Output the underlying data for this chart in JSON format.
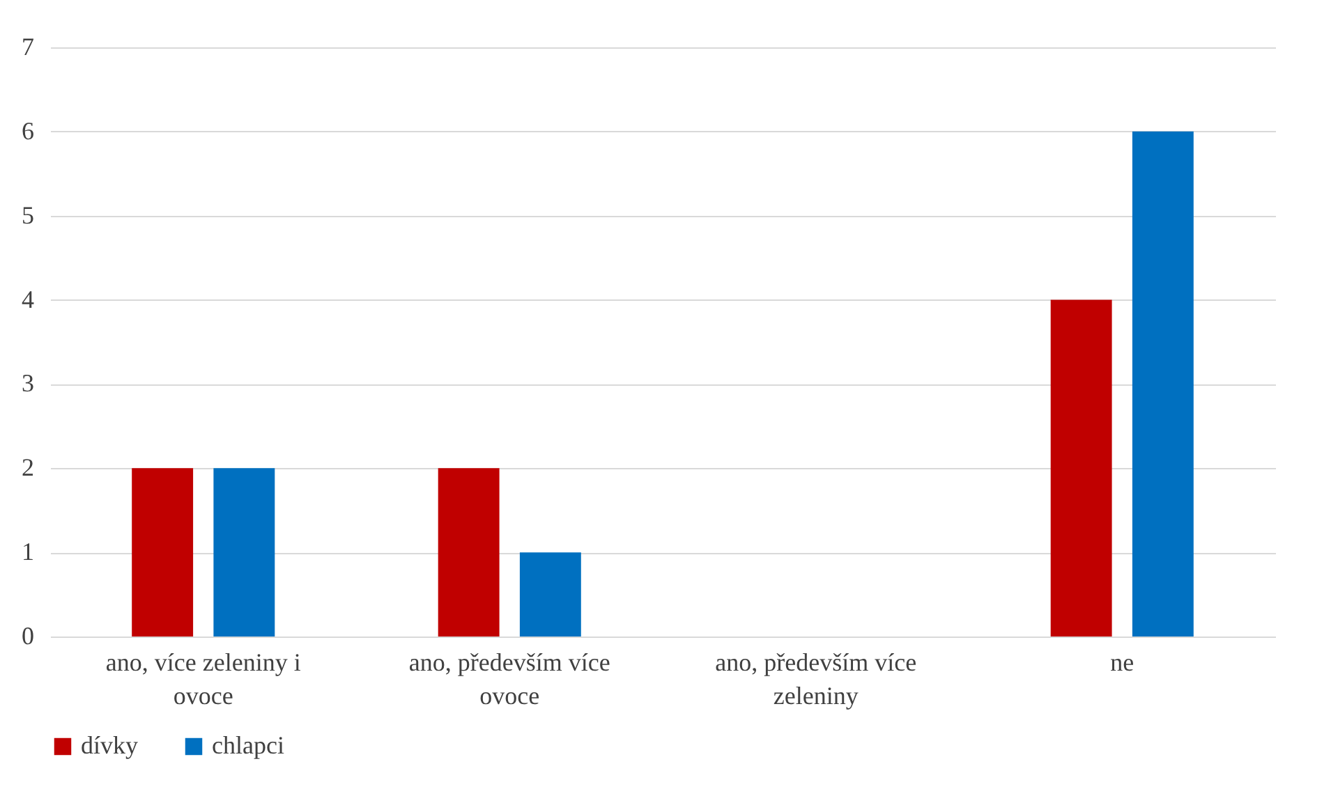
{
  "chart_data": {
    "type": "bar",
    "categories": [
      "ano, více zeleniny i ovoce",
      "ano, především více ovoce",
      "ano, především více zeleniny",
      "ne"
    ],
    "series": [
      {
        "name": "dívky",
        "color": "#c00000",
        "values": [
          2,
          2,
          0,
          4
        ]
      },
      {
        "name": "chlapci",
        "color": "#0070c0",
        "values": [
          2,
          1,
          0,
          6
        ]
      }
    ],
    "ylim": [
      0,
      7
    ],
    "yticks": [
      0,
      1,
      2,
      3,
      4,
      5,
      6,
      7
    ],
    "grid": "y",
    "legend": "bottom"
  }
}
